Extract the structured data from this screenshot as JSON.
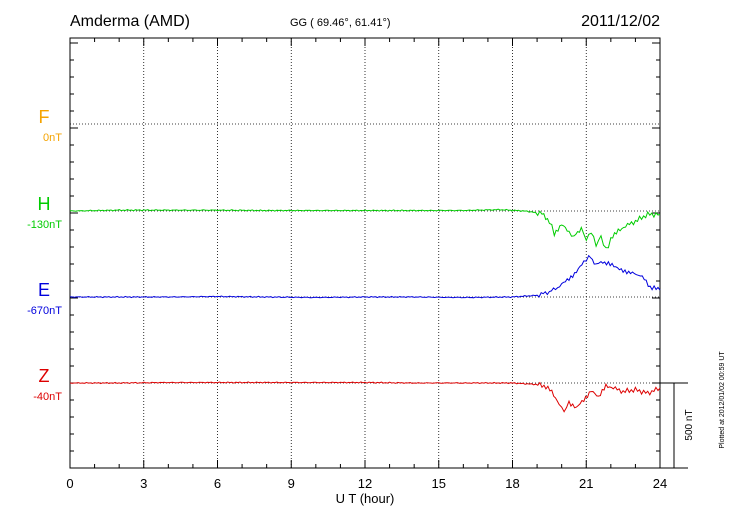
{
  "header": {
    "station": "Amderma (AMD)",
    "coords": "GG ( 69.46°,  61.41°)",
    "date": "2011/12/02"
  },
  "footer": {
    "plotted": "Plotted at 2012/01/02 00:59 UT",
    "scale": "500 nT"
  },
  "chart_data": {
    "type": "line",
    "xlabel": "U T (hour)",
    "xlim": [
      0,
      24
    ],
    "xticks": [
      0,
      3,
      6,
      9,
      12,
      15,
      18,
      21,
      24
    ],
    "scale_bar_nT": 500,
    "grid": "dotted",
    "series": [
      {
        "name": "F",
        "baseline_label": "0nT",
        "color": "#f5a300",
        "x": [],
        "y": []
      },
      {
        "name": "H",
        "baseline_label": "-130nT",
        "color": "#00cc00",
        "x": [
          0,
          2,
          4,
          6,
          8,
          10,
          12,
          14,
          16,
          17.5,
          18.5,
          19.2,
          19.5,
          19.7,
          20.0,
          20.3,
          20.5,
          20.8,
          21.0,
          21.2,
          21.4,
          21.6,
          21.8,
          22.0,
          22.3,
          22.6,
          23.0,
          23.5,
          24.0
        ],
        "y": [
          0,
          5,
          5,
          5,
          3,
          3,
          3,
          3,
          3,
          8,
          0,
          -15,
          -60,
          -130,
          -80,
          -130,
          -150,
          -100,
          -170,
          -120,
          -200,
          -150,
          -230,
          -170,
          -110,
          -90,
          -60,
          -20,
          -20
        ]
      },
      {
        "name": "E",
        "baseline_label": "-670nT",
        "color": "#0000dd",
        "x": [
          0,
          2,
          4,
          6,
          8,
          10,
          12,
          14,
          16,
          18,
          19,
          19.5,
          20.0,
          20.3,
          20.6,
          20.9,
          21.1,
          21.4,
          21.6,
          21.9,
          22.2,
          22.5,
          22.8,
          23.2,
          23.6,
          24.0
        ],
        "y": [
          0,
          0,
          0,
          3,
          0,
          -3,
          0,
          0,
          -3,
          0,
          10,
          30,
          70,
          110,
          150,
          200,
          240,
          190,
          210,
          200,
          170,
          160,
          140,
          130,
          60,
          40
        ]
      },
      {
        "name": "Z",
        "baseline_label": "-40nT",
        "color": "#dd0000",
        "x": [
          0,
          2,
          4,
          6,
          8,
          10,
          12,
          14,
          16,
          18,
          19.2,
          19.6,
          19.9,
          20.1,
          20.3,
          20.6,
          20.9,
          21.2,
          21.5,
          21.8,
          22.1,
          22.5,
          23.0,
          23.5,
          24.0
        ],
        "y": [
          0,
          0,
          3,
          3,
          3,
          3,
          3,
          0,
          0,
          0,
          -10,
          -50,
          -120,
          -170,
          -110,
          -150,
          -100,
          -40,
          -90,
          -10,
          -30,
          -50,
          -40,
          -60,
          -30
        ]
      }
    ]
  }
}
